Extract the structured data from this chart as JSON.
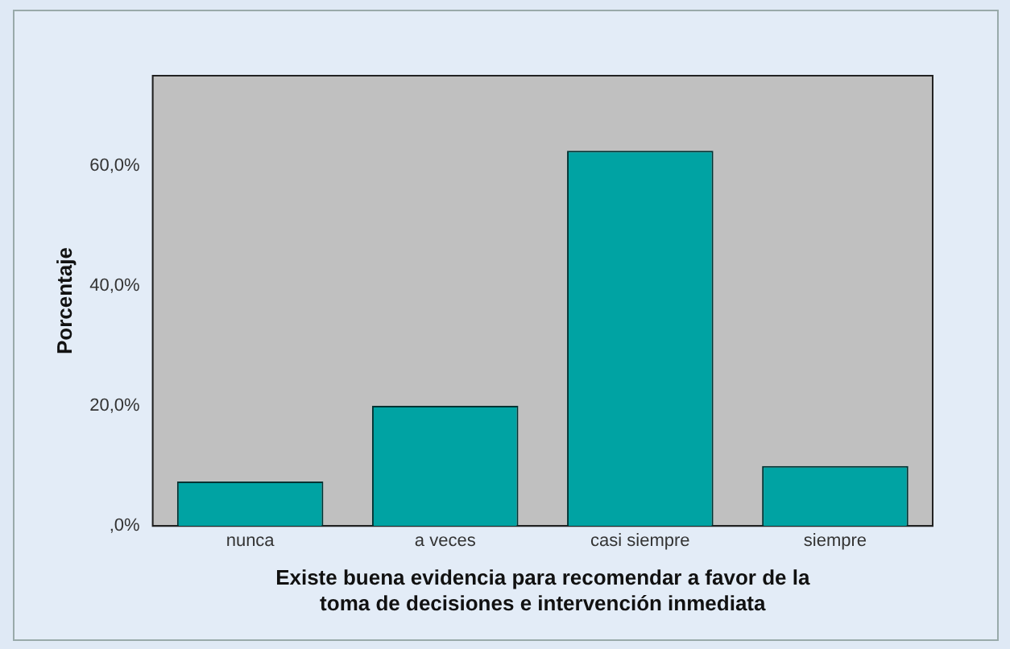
{
  "chart_data": {
    "type": "bar",
    "xlabel": "Existe buena evidencia para recomendar a favor de la\ntoma de decisiones e intervención inmediata",
    "ylabel": "Porcentaje",
    "categories": [
      "nunca",
      "a veces",
      "casi siempre",
      "siempre"
    ],
    "values": [
      7.4,
      20.0,
      62.5,
      10.0
    ],
    "color": "#00a3a3",
    "ylim": [
      0,
      75
    ],
    "yticks": [
      {
        "value": 0,
        "label": ",0%"
      },
      {
        "value": 20,
        "label": "20,0%"
      },
      {
        "value": 40,
        "label": "40,0%"
      },
      {
        "value": 60,
        "label": "60,0%"
      }
    ],
    "grid": false,
    "legend": false
  }
}
